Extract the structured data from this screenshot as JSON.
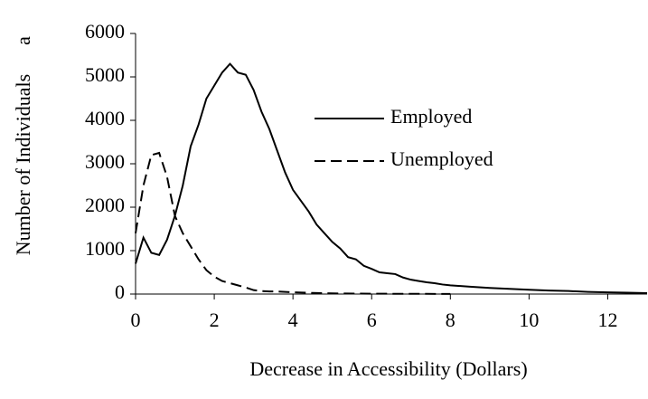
{
  "chart_data": {
    "type": "line",
    "xlabel": "Decrease in Accessibility (Dollars)",
    "ylabel": "Number of Individuals",
    "annotation": "a",
    "xlim": [
      0,
      13
    ],
    "xticks": [
      0,
      2,
      4,
      6,
      8,
      10,
      12
    ],
    "ylim": [
      0,
      6000
    ],
    "yticks": [
      0,
      1000,
      2000,
      3000,
      4000,
      5000,
      6000
    ],
    "grid": false,
    "series": [
      {
        "name": "Employed",
        "color": "#000000",
        "dash": false,
        "x": [
          0,
          0.2,
          0.4,
          0.6,
          0.8,
          1.0,
          1.2,
          1.4,
          1.6,
          1.8,
          2.0,
          2.2,
          2.4,
          2.6,
          2.8,
          3.0,
          3.2,
          3.4,
          3.6,
          3.8,
          4.0,
          4.2,
          4.4,
          4.6,
          4.8,
          5.0,
          5.2,
          5.4,
          5.6,
          5.8,
          6.0,
          6.2,
          6.4,
          6.6,
          6.8,
          7.0,
          7.2,
          7.4,
          7.6,
          7.8,
          8.0,
          8.5,
          9.0,
          9.5,
          10.0,
          10.5,
          11.0,
          11.5,
          12.0,
          12.5,
          13.0
        ],
        "values": [
          700,
          1300,
          950,
          900,
          1250,
          1800,
          2500,
          3400,
          3900,
          4500,
          4800,
          5100,
          5300,
          5100,
          5050,
          4700,
          4200,
          3800,
          3300,
          2800,
          2400,
          2150,
          1900,
          1600,
          1400,
          1200,
          1050,
          850,
          800,
          650,
          580,
          500,
          480,
          460,
          380,
          330,
          300,
          270,
          250,
          220,
          200,
          170,
          140,
          120,
          100,
          80,
          70,
          50,
          40,
          30,
          20
        ]
      },
      {
        "name": "Unemployed",
        "color": "#000000",
        "dash": true,
        "x": [
          0,
          0.2,
          0.4,
          0.6,
          0.8,
          1.0,
          1.2,
          1.4,
          1.6,
          1.8,
          2.0,
          2.2,
          2.4,
          2.6,
          2.8,
          3.0,
          3.2,
          3.4,
          3.6,
          3.8,
          4.0,
          4.5,
          5.0,
          6.0,
          7.0,
          8.0
        ],
        "values": [
          1400,
          2500,
          3200,
          3250,
          2700,
          1800,
          1400,
          1100,
          800,
          550,
          400,
          300,
          250,
          200,
          150,
          90,
          70,
          60,
          60,
          50,
          40,
          25,
          15,
          8,
          5,
          3
        ]
      }
    ]
  }
}
